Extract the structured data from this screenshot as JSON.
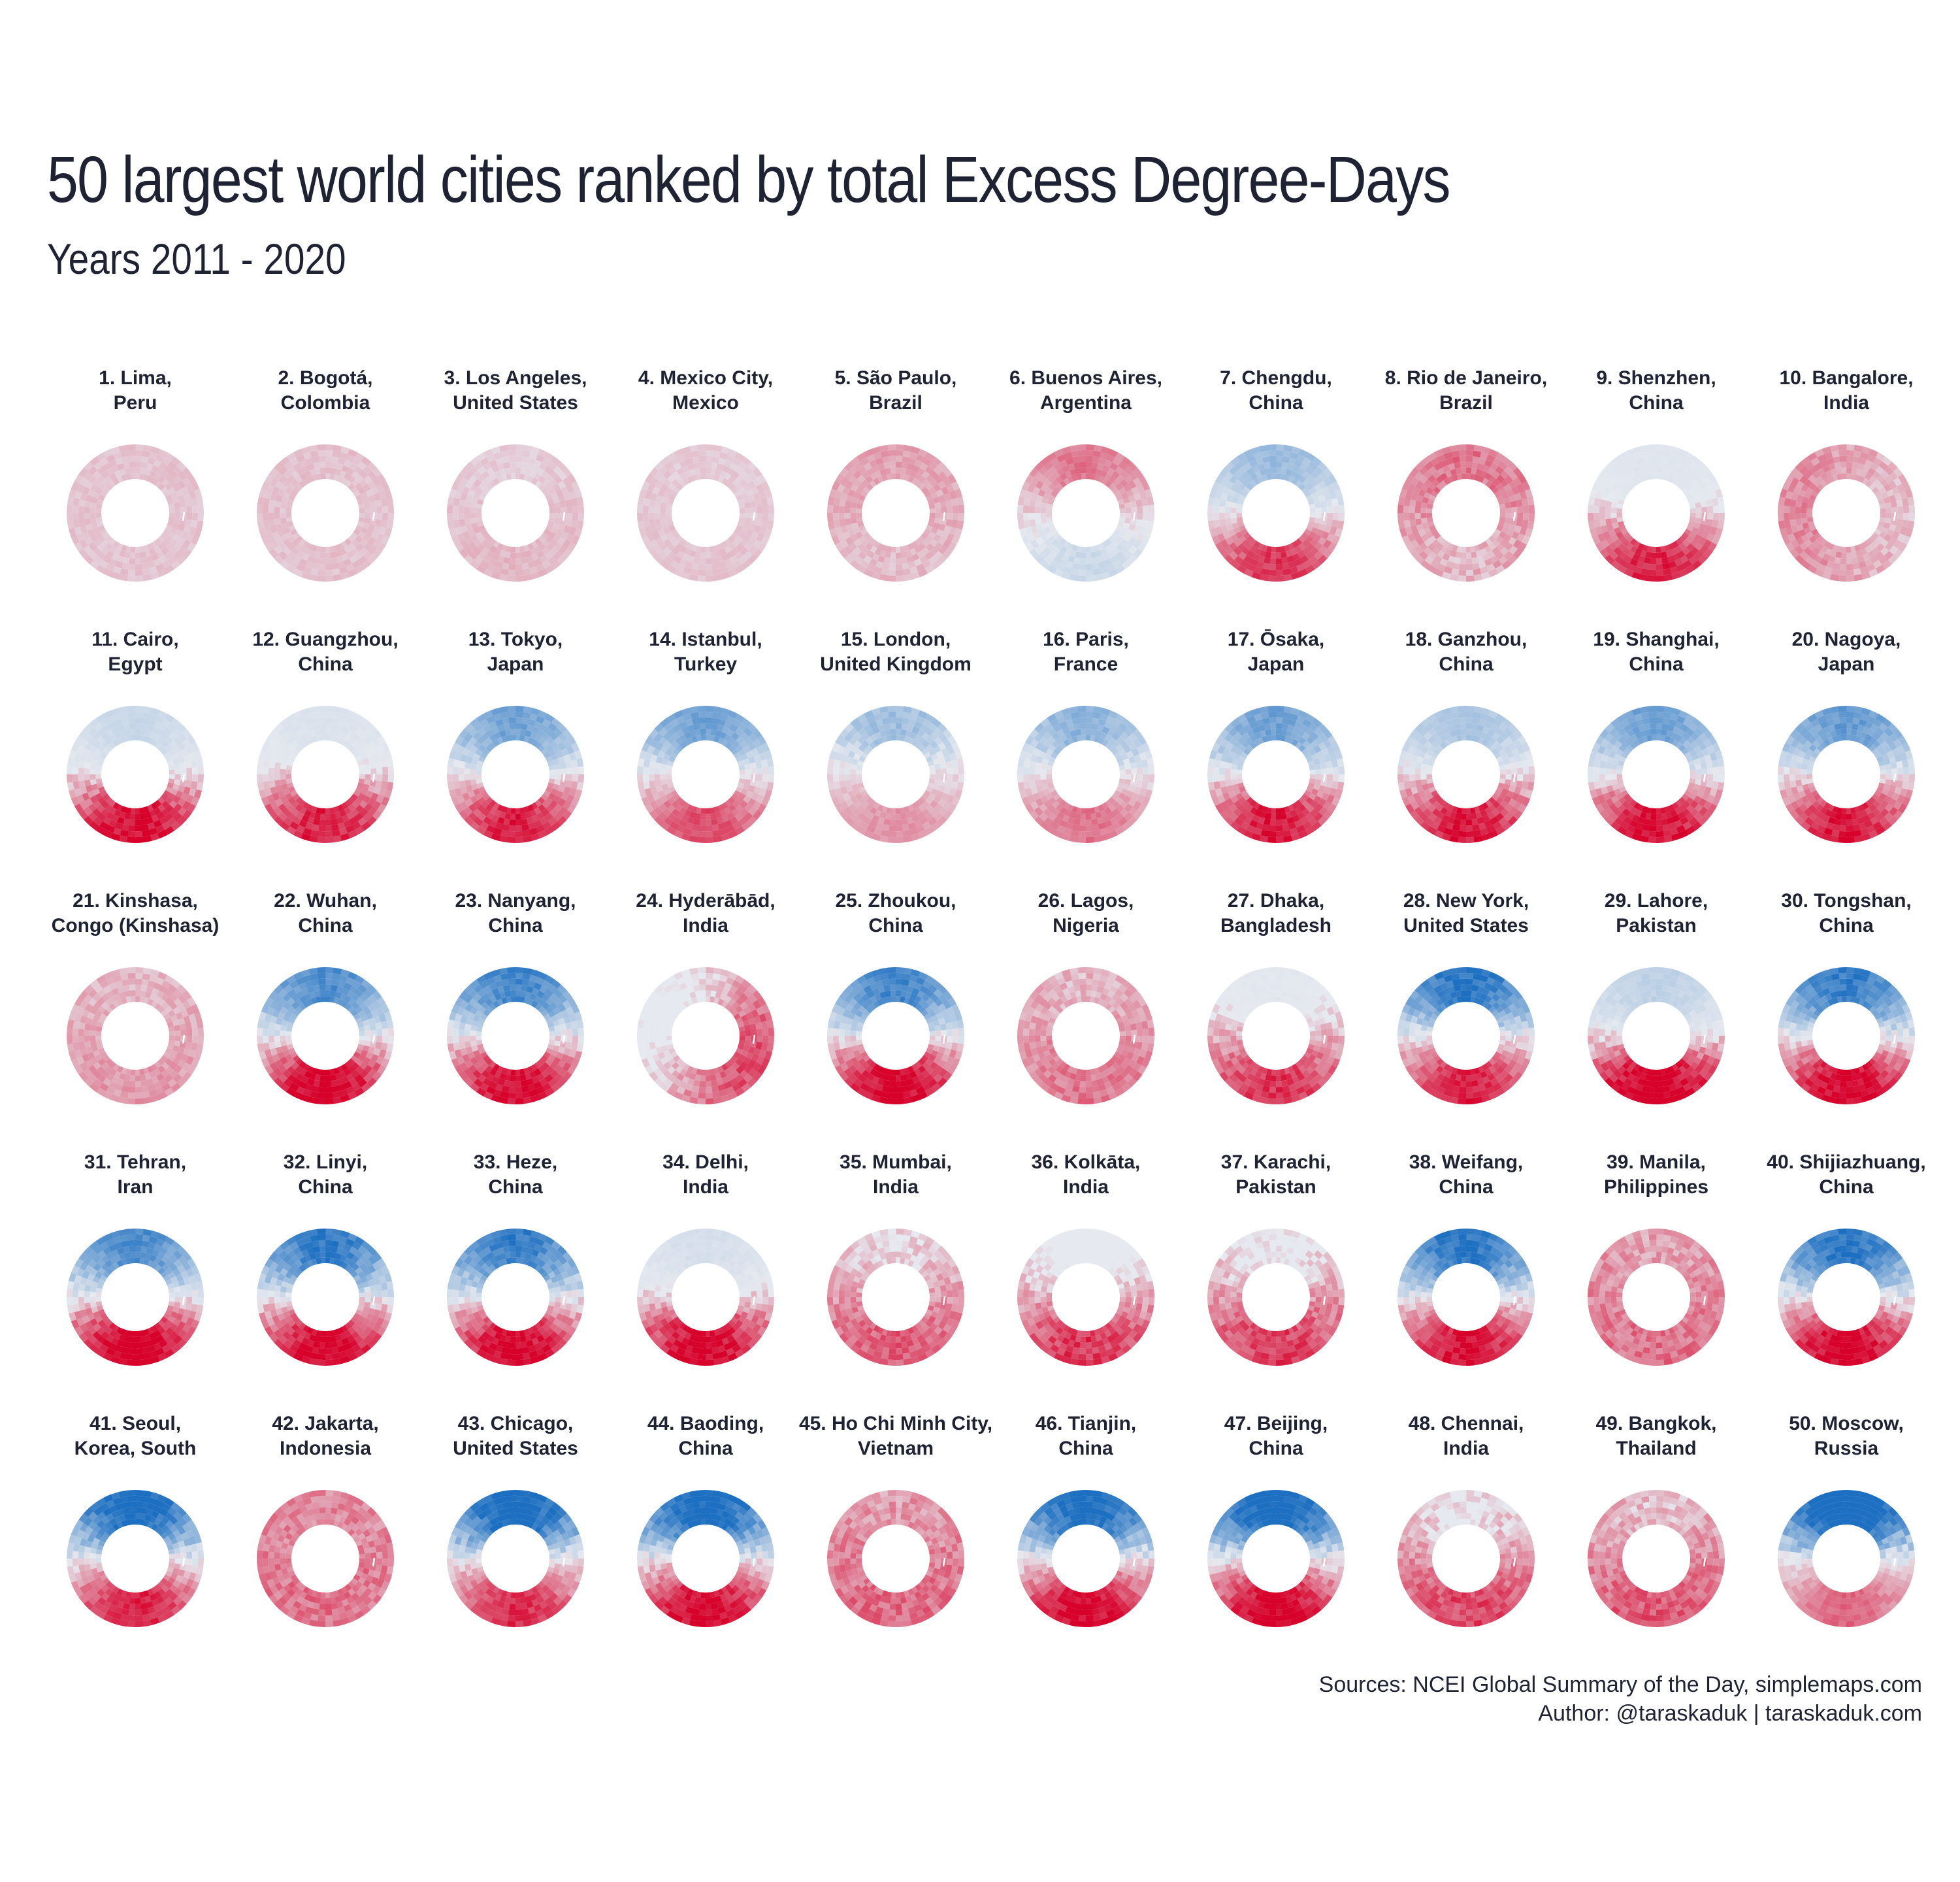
{
  "title": "50 largest world cities ranked by total Excess Degree-Days",
  "subtitle": "Years 2011 - 2020",
  "sources": {
    "line1": "Sources: NCEI Global Summary of the Day, simplemaps.com",
    "line2": "Author: @taraskaduk | taraskaduk.com"
  },
  "colors": {
    "hot": "#d7002a",
    "cold": "#1d6fc1",
    "neutral": "#e6e9ef",
    "text": "#1f2233"
  },
  "chart_data": {
    "type": "radial heatmap grid",
    "cities": [
      {
        "rank": 1,
        "line1": "1. Lima,",
        "line2": "Peru",
        "heat": 0.28,
        "cold": 0.05,
        "seasonal": 0.0,
        "phase": 0
      },
      {
        "rank": 2,
        "line1": "2. Bogotá,",
        "line2": "Colombia",
        "heat": 0.3,
        "cold": 0.0,
        "seasonal": 0.0,
        "phase": 0
      },
      {
        "rank": 3,
        "line1": "3. Los Angeles,",
        "line2": "United States",
        "heat": 0.33,
        "cold": 0.08,
        "seasonal": 0.1,
        "phase": 0
      },
      {
        "rank": 4,
        "line1": "4. Mexico City,",
        "line2": "Mexico",
        "heat": 0.27,
        "cold": 0.1,
        "seasonal": 0.05,
        "phase": 0
      },
      {
        "rank": 5,
        "line1": "5. São Paulo,",
        "line2": "Brazil",
        "heat": 0.48,
        "cold": 0.08,
        "seasonal": 0.1,
        "phase": 180
      },
      {
        "rank": 6,
        "line1": "6. Buenos Aires,",
        "line2": "Argentina",
        "heat": 0.5,
        "cold": 0.25,
        "seasonal": 0.6,
        "phase": 180
      },
      {
        "rank": 7,
        "line1": "7. Chengdu,",
        "line2": "China",
        "heat": 0.65,
        "cold": 0.35,
        "seasonal": 0.9,
        "phase": 0
      },
      {
        "rank": 8,
        "line1": "8. Rio de Janeiro,",
        "line2": "Brazil",
        "heat": 0.75,
        "cold": 0.0,
        "seasonal": 0.15,
        "phase": 180
      },
      {
        "rank": 9,
        "line1": "9. Shenzhen,",
        "line2": "China",
        "heat": 0.8,
        "cold": 0.05,
        "seasonal": 0.7,
        "phase": 0
      },
      {
        "rank": 10,
        "line1": "10. Bangalore,",
        "line2": "India",
        "heat": 0.62,
        "cold": 0.0,
        "seasonal": 0.15,
        "phase": 90
      },
      {
        "rank": 11,
        "line1": "11. Cairo,",
        "line2": "Egypt",
        "heat": 0.85,
        "cold": 0.15,
        "seasonal": 0.85,
        "phase": 0
      },
      {
        "rank": 12,
        "line1": "12. Guangzhou,",
        "line2": "China",
        "heat": 0.82,
        "cold": 0.08,
        "seasonal": 0.7,
        "phase": 0
      },
      {
        "rank": 13,
        "line1": "13. Tokyo,",
        "line2": "Japan",
        "heat": 0.72,
        "cold": 0.5,
        "seasonal": 0.95,
        "phase": 0
      },
      {
        "rank": 14,
        "line1": "14. Istanbul,",
        "line2": "Turkey",
        "heat": 0.55,
        "cold": 0.5,
        "seasonal": 0.95,
        "phase": 0
      },
      {
        "rank": 15,
        "line1": "15. London,",
        "line2": "United Kingdom",
        "heat": 0.35,
        "cold": 0.5,
        "seasonal": 0.7,
        "phase": 0
      },
      {
        "rank": 16,
        "line1": "16. Paris,",
        "line2": "France",
        "heat": 0.45,
        "cold": 0.5,
        "seasonal": 0.8,
        "phase": 0
      },
      {
        "rank": 17,
        "line1": "17. Ōsaka,",
        "line2": "Japan",
        "heat": 0.75,
        "cold": 0.5,
        "seasonal": 0.95,
        "phase": 0
      },
      {
        "rank": 18,
        "line1": "18. Ganzhou,",
        "line2": "China",
        "heat": 0.8,
        "cold": 0.3,
        "seasonal": 0.85,
        "phase": 0
      },
      {
        "rank": 19,
        "line1": "19. Shanghai,",
        "line2": "China",
        "heat": 0.78,
        "cold": 0.5,
        "seasonal": 0.95,
        "phase": 0
      },
      {
        "rank": 20,
        "line1": "20. Nagoya,",
        "line2": "Japan",
        "heat": 0.75,
        "cold": 0.55,
        "seasonal": 0.95,
        "phase": 0
      },
      {
        "rank": 21,
        "line1": "21. Kinshasa,",
        "line2": "Congo (Kinshasa)",
        "heat": 0.55,
        "cold": 0.0,
        "seasonal": 0.1,
        "phase": 0
      },
      {
        "rank": 22,
        "line1": "22. Wuhan,",
        "line2": "China",
        "heat": 0.82,
        "cold": 0.6,
        "seasonal": 1.0,
        "phase": 0
      },
      {
        "rank": 23,
        "line1": "23. Nanyang,",
        "line2": "China",
        "heat": 0.78,
        "cold": 0.65,
        "seasonal": 1.0,
        "phase": 0
      },
      {
        "rank": 24,
        "line1": "24. Hyderābād,",
        "line2": "India",
        "heat": 0.8,
        "cold": 0.0,
        "seasonal": 0.4,
        "phase": 300
      },
      {
        "rank": 25,
        "line1": "25. Zhoukou,",
        "line2": "China",
        "heat": 0.8,
        "cold": 0.65,
        "seasonal": 1.0,
        "phase": 0
      },
      {
        "rank": 26,
        "line1": "26. Lagos,",
        "line2": "Nigeria",
        "heat": 0.72,
        "cold": 0.0,
        "seasonal": 0.15,
        "phase": 0
      },
      {
        "rank": 27,
        "line1": "27. Dhaka,",
        "line2": "Bangladesh",
        "heat": 0.85,
        "cold": 0.05,
        "seasonal": 0.5,
        "phase": 0
      },
      {
        "rank": 28,
        "line1": "28. New York,",
        "line2": "United States",
        "heat": 0.7,
        "cold": 0.75,
        "seasonal": 1.0,
        "phase": 0
      },
      {
        "rank": 29,
        "line1": "29. Lahore,",
        "line2": "Pakistan",
        "heat": 0.95,
        "cold": 0.2,
        "seasonal": 0.85,
        "phase": 0
      },
      {
        "rank": 30,
        "line1": "30. Tongshan,",
        "line2": "China",
        "heat": 0.8,
        "cold": 0.7,
        "seasonal": 1.0,
        "phase": 0
      },
      {
        "rank": 31,
        "line1": "31. Tehran,",
        "line2": "Iran",
        "heat": 0.88,
        "cold": 0.6,
        "seasonal": 1.0,
        "phase": 0
      },
      {
        "rank": 32,
        "line1": "32. Linyi,",
        "line2": "China",
        "heat": 0.8,
        "cold": 0.72,
        "seasonal": 1.0,
        "phase": 0
      },
      {
        "rank": 33,
        "line1": "33. Heze,",
        "line2": "China",
        "heat": 0.8,
        "cold": 0.7,
        "seasonal": 1.0,
        "phase": 0
      },
      {
        "rank": 34,
        "line1": "34. Delhi,",
        "line2": "India",
        "heat": 0.95,
        "cold": 0.1,
        "seasonal": 0.75,
        "phase": 0
      },
      {
        "rank": 35,
        "line1": "35. Mumbai,",
        "line2": "India",
        "heat": 0.82,
        "cold": 0.0,
        "seasonal": 0.25,
        "phase": 0
      },
      {
        "rank": 36,
        "line1": "36. Kolkāta,",
        "line2": "India",
        "heat": 0.88,
        "cold": 0.0,
        "seasonal": 0.45,
        "phase": 0
      },
      {
        "rank": 37,
        "line1": "37. Karachi,",
        "line2": "Pakistan",
        "heat": 0.92,
        "cold": 0.0,
        "seasonal": 0.35,
        "phase": 0
      },
      {
        "rank": 38,
        "line1": "38. Weifang,",
        "line2": "China",
        "heat": 0.75,
        "cold": 0.75,
        "seasonal": 1.0,
        "phase": 0
      },
      {
        "rank": 39,
        "line1": "39. Manila,",
        "line2": "Philippines",
        "heat": 0.82,
        "cold": 0.0,
        "seasonal": 0.1,
        "phase": 0
      },
      {
        "rank": 40,
        "line1": "40. Shijiazhuang,",
        "line2": "China",
        "heat": 0.82,
        "cold": 0.75,
        "seasonal": 1.0,
        "phase": 0
      },
      {
        "rank": 41,
        "line1": "41. Seoul,",
        "line2": "Korea, South",
        "heat": 0.7,
        "cold": 0.85,
        "seasonal": 1.0,
        "phase": 0
      },
      {
        "rank": 42,
        "line1": "42. Jakarta,",
        "line2": "Indonesia",
        "heat": 0.85,
        "cold": 0.0,
        "seasonal": 0.05,
        "phase": 0
      },
      {
        "rank": 43,
        "line1": "43. Chicago,",
        "line2": "United States",
        "heat": 0.65,
        "cold": 0.9,
        "seasonal": 1.0,
        "phase": 0
      },
      {
        "rank": 44,
        "line1": "44. Baoding,",
        "line2": "China",
        "heat": 0.8,
        "cold": 0.85,
        "seasonal": 1.0,
        "phase": 0
      },
      {
        "rank": 45,
        "line1": "45. Ho Chi Minh City,",
        "line2": "Vietnam",
        "heat": 0.88,
        "cold": 0.0,
        "seasonal": 0.1,
        "phase": 0
      },
      {
        "rank": 46,
        "line1": "46. Tianjin,",
        "line2": "China",
        "heat": 0.8,
        "cold": 0.85,
        "seasonal": 1.0,
        "phase": 0
      },
      {
        "rank": 47,
        "line1": "47. Beijing,",
        "line2": "China",
        "heat": 0.82,
        "cold": 0.9,
        "seasonal": 1.0,
        "phase": 0
      },
      {
        "rank": 48,
        "line1": "48. Chennai,",
        "line2": "India",
        "heat": 0.92,
        "cold": 0.0,
        "seasonal": 0.3,
        "phase": 0
      },
      {
        "rank": 49,
        "line1": "49. Bangkok,",
        "line2": "Thailand",
        "heat": 0.9,
        "cold": 0.0,
        "seasonal": 0.2,
        "phase": 0
      },
      {
        "rank": 50,
        "line1": "50. Moscow,",
        "line2": "Russia",
        "heat": 0.45,
        "cold": 1.0,
        "seasonal": 1.0,
        "phase": 0
      }
    ]
  }
}
